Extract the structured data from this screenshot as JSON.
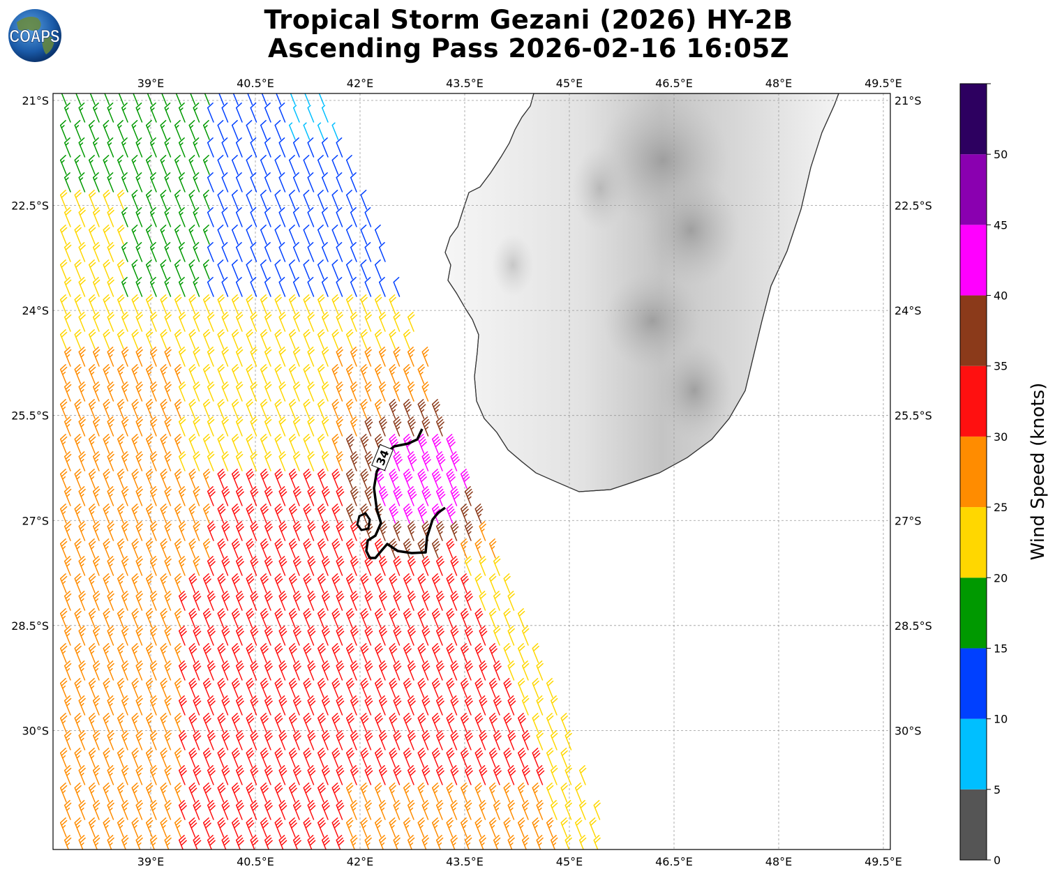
{
  "title": {
    "line1": "Tropical Storm Gezani (2026) HY-2B",
    "line2": "Ascending Pass 2026-02-16 16:05Z"
  },
  "logo": {
    "text": "COAPS",
    "icon": "globe-icon"
  },
  "map": {
    "lon_range": [
      37.6,
      49.6
    ],
    "lat_range": [
      -31.7,
      -20.9
    ],
    "lon_ticks": [
      39,
      40.5,
      42,
      43.5,
      45,
      46.5,
      48,
      49.5
    ],
    "lon_tick_labels": [
      "39°E",
      "40.5°E",
      "42°E",
      "43.5°E",
      "45°E",
      "46.5°E",
      "48°E",
      "49.5°E"
    ],
    "lat_ticks": [
      -21,
      -22.5,
      -24,
      -25.5,
      -27,
      -28.5,
      -30
    ],
    "lat_tick_labels": [
      "21°S",
      "22.5°S",
      "24°S",
      "25.5°S",
      "27°S",
      "28.5°S",
      "30°S"
    ],
    "landmass": "Madagascar (southern half, grayscale terrain)",
    "contour_label": "34"
  },
  "colorbar": {
    "label": "Wind Speed (knots)",
    "levels": [
      0,
      5,
      10,
      15,
      20,
      25,
      30,
      35,
      40,
      45,
      50
    ],
    "tick_labels": [
      "0",
      "5",
      "10",
      "15",
      "20",
      "25",
      "30",
      "35",
      "40",
      "45",
      "50"
    ],
    "colors": [
      "#555555",
      "#00bfff",
      "#0040ff",
      "#009900",
      "#ffd700",
      "#ff8c00",
      "#ff1010",
      "#8b3a1a",
      "#ff00ff",
      "#8a00b0",
      "#2d0060"
    ]
  }
}
